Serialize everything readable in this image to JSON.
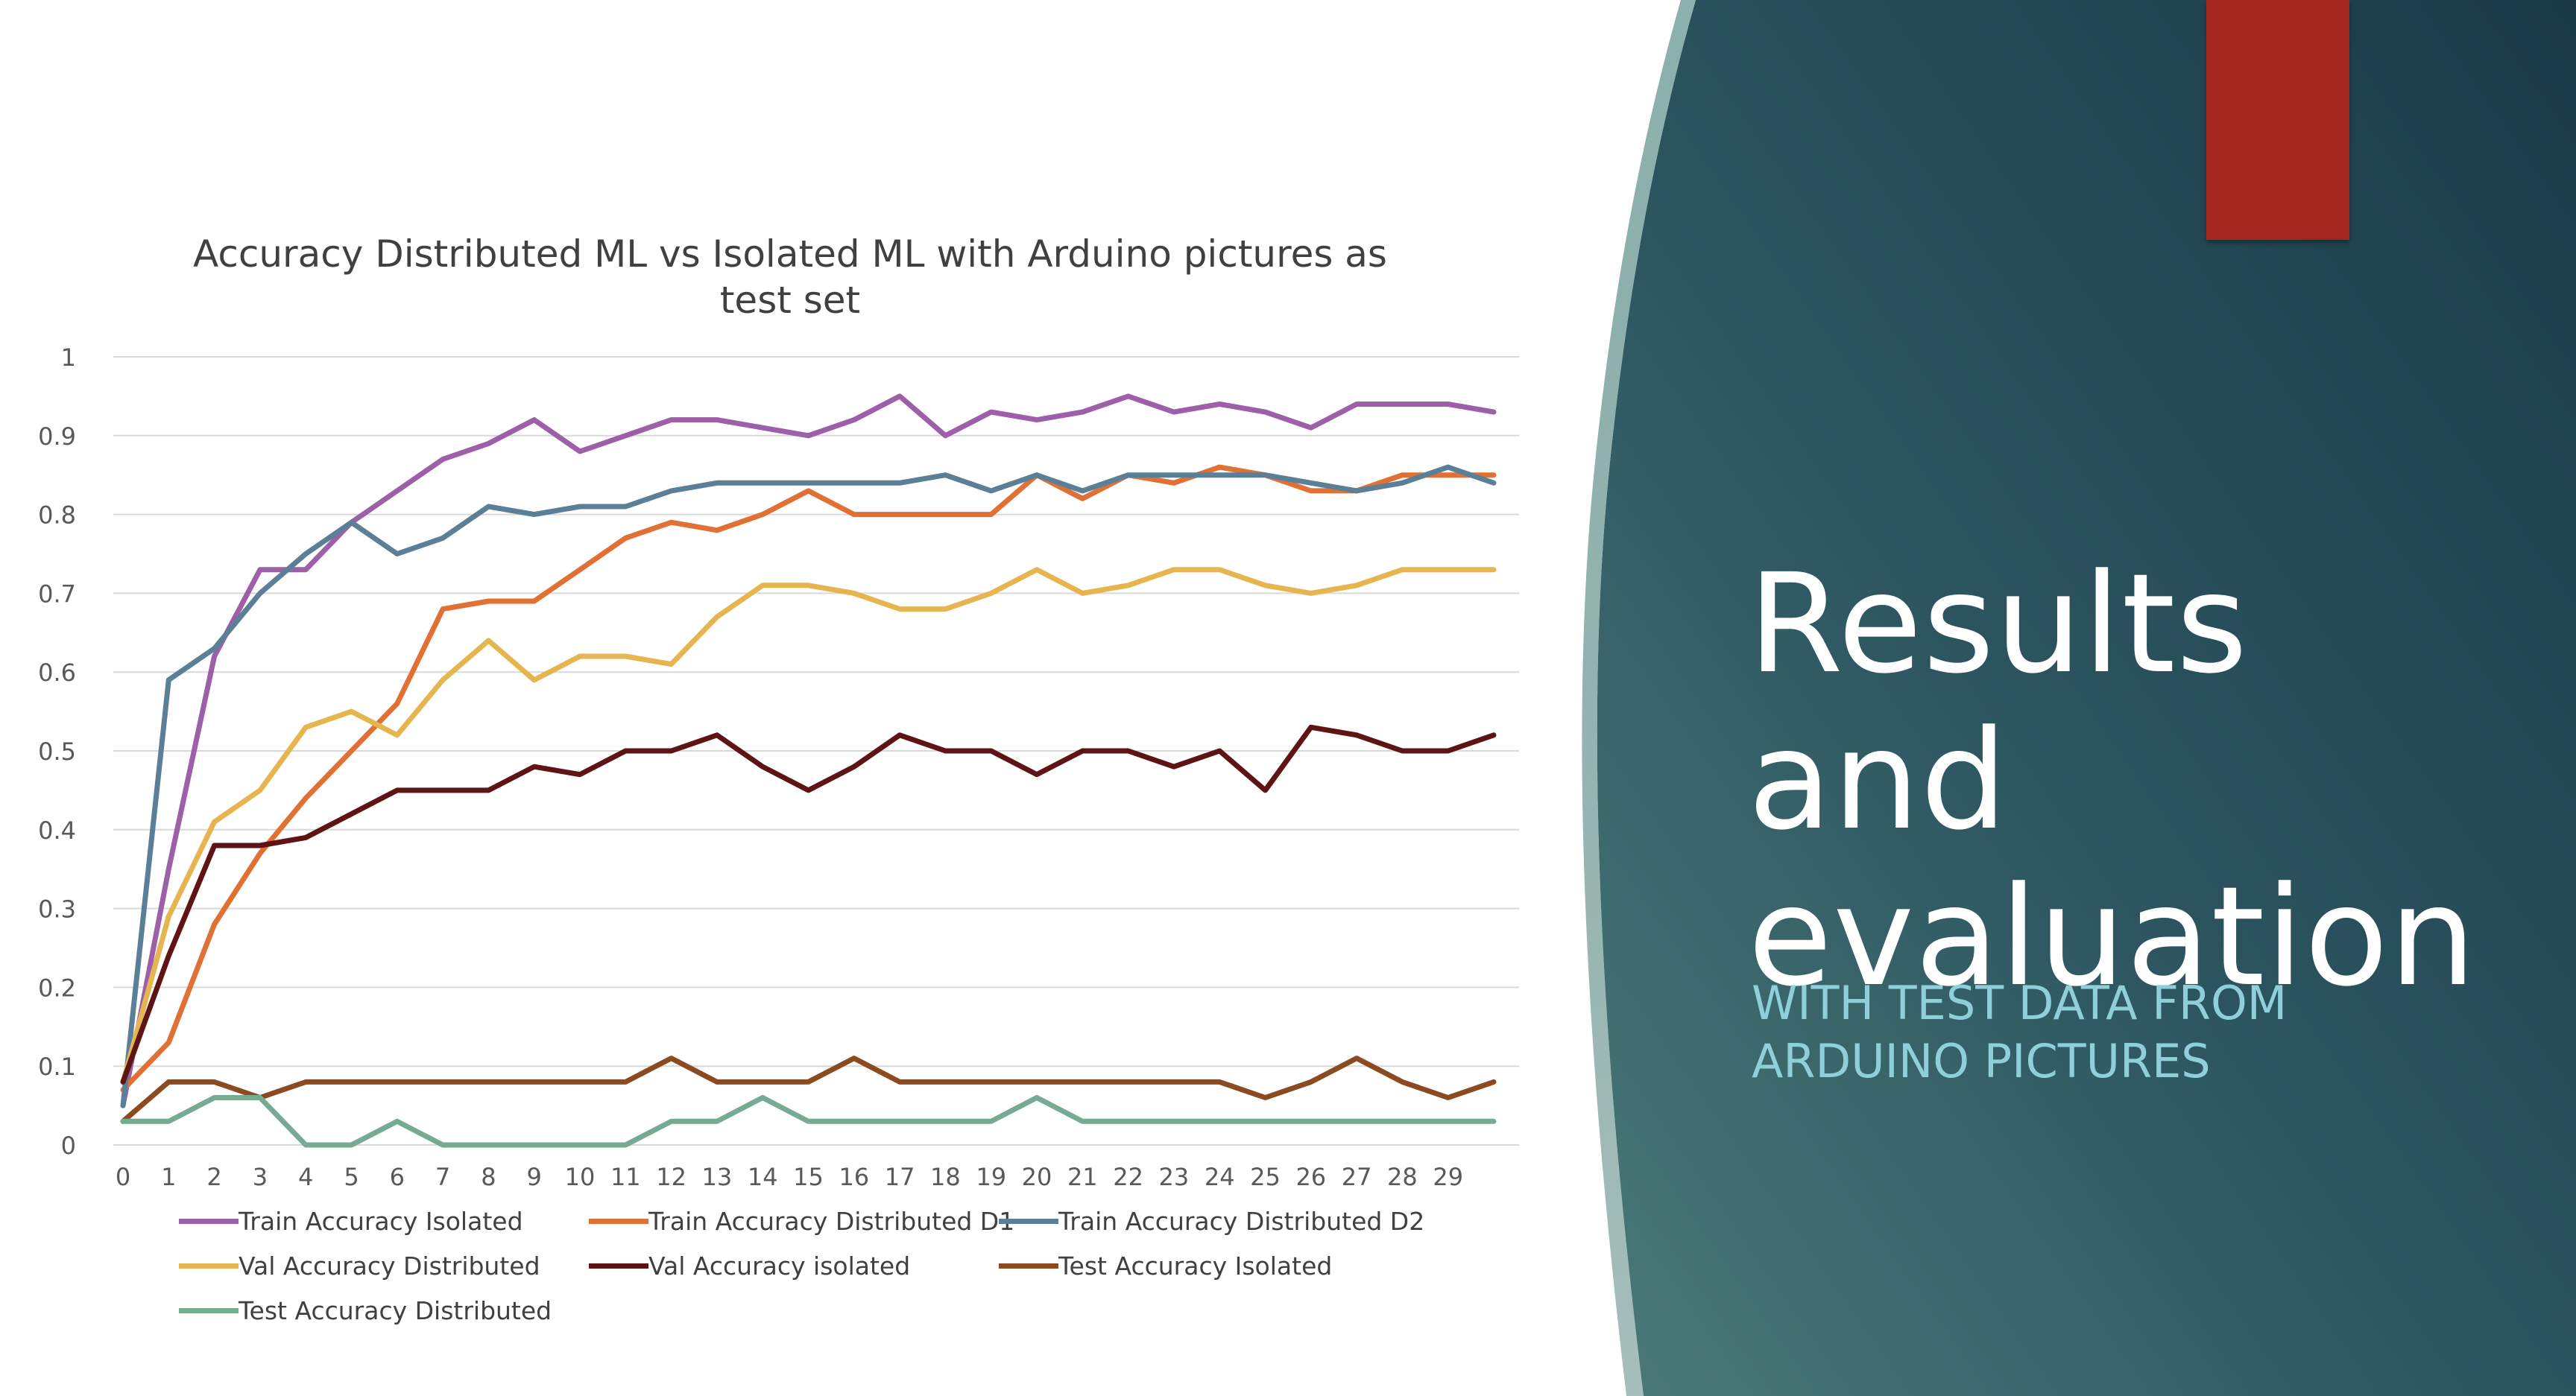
{
  "slide": {
    "title_lines": [
      "Results",
      "and",
      "evaluation"
    ],
    "subtitle_lines": [
      "WITH TEST DATA FROM",
      "ARDUINO PICTURES"
    ],
    "colors": {
      "panel_dark": "#1d3d48",
      "panel_light": "#3d6a6c",
      "accent_red": "#a3271f",
      "subtitle": "#8fcfd9"
    }
  },
  "chart_data": {
    "type": "line",
    "title_lines": [
      "Accuracy Distributed ML vs Isolated ML with Arduino pictures as",
      "test set"
    ],
    "xlabel": "",
    "ylabel": "",
    "x_ticks": [
      "0",
      "1",
      "2",
      "3",
      "4",
      "5",
      "6",
      "7",
      "8",
      "9",
      "10",
      "11",
      "12",
      "13",
      "14",
      "15",
      "16",
      "17",
      "18",
      "19",
      "20",
      "21",
      "22",
      "23",
      "24",
      "25",
      "26",
      "27",
      "28",
      "29"
    ],
    "y_ticks": [
      "0",
      "0.1",
      "0.2",
      "0.3",
      "0.4",
      "0.5",
      "0.6",
      "0.7",
      "0.8",
      "0.9",
      "1"
    ],
    "ylim": [
      0,
      1
    ],
    "xlim": [
      0,
      30
    ],
    "grid": true,
    "legend_position": "bottom",
    "series": [
      {
        "name": "Train Accuracy Isolated",
        "color": "#9c5fa8",
        "values": [
          0.05,
          0.35,
          0.62,
          0.73,
          0.73,
          0.79,
          0.83,
          0.87,
          0.89,
          0.92,
          0.88,
          0.9,
          0.92,
          0.92,
          0.91,
          0.9,
          0.92,
          0.95,
          0.9,
          0.93,
          0.92,
          0.93,
          0.95,
          0.93,
          0.94,
          0.93,
          0.91,
          0.94,
          0.94,
          0.94,
          0.93
        ]
      },
      {
        "name": "Train Accuracy Distributed D1",
        "color": "#e07034",
        "values": [
          0.07,
          0.13,
          0.28,
          0.37,
          0.44,
          0.5,
          0.56,
          0.68,
          0.69,
          0.69,
          0.73,
          0.77,
          0.79,
          0.78,
          0.8,
          0.83,
          0.8,
          0.8,
          0.8,
          0.8,
          0.85,
          0.82,
          0.85,
          0.84,
          0.86,
          0.85,
          0.83,
          0.83,
          0.85,
          0.85,
          0.85
        ]
      },
      {
        "name": "Train Accuracy Distributed D2",
        "color": "#5b7f96",
        "values": [
          0.05,
          0.59,
          0.63,
          0.7,
          0.75,
          0.79,
          0.75,
          0.77,
          0.81,
          0.8,
          0.81,
          0.81,
          0.83,
          0.84,
          0.84,
          0.84,
          0.84,
          0.84,
          0.85,
          0.83,
          0.85,
          0.83,
          0.85,
          0.85,
          0.85,
          0.85,
          0.84,
          0.83,
          0.84,
          0.86,
          0.84
        ]
      },
      {
        "name": "Val Accuracy Distributed",
        "color": "#e6b54f",
        "values": [
          0.08,
          0.29,
          0.41,
          0.45,
          0.53,
          0.55,
          0.52,
          0.59,
          0.64,
          0.59,
          0.62,
          0.62,
          0.61,
          0.67,
          0.71,
          0.71,
          0.7,
          0.68,
          0.68,
          0.7,
          0.73,
          0.7,
          0.71,
          0.73,
          0.73,
          0.71,
          0.7,
          0.71,
          0.73,
          0.73,
          0.73
        ]
      },
      {
        "name": "Val Accuracy isolated",
        "color": "#5e1414",
        "values": [
          0.08,
          0.24,
          0.38,
          0.38,
          0.39,
          0.42,
          0.45,
          0.45,
          0.45,
          0.48,
          0.47,
          0.5,
          0.5,
          0.52,
          0.48,
          0.45,
          0.48,
          0.52,
          0.5,
          0.5,
          0.47,
          0.5,
          0.5,
          0.48,
          0.5,
          0.45,
          0.53,
          0.52,
          0.5,
          0.5,
          0.52
        ]
      },
      {
        "name": "Test Accuracy Isolated",
        "color": "#8b4a20",
        "values": [
          0.03,
          0.08,
          0.08,
          0.06,
          0.08,
          0.08,
          0.08,
          0.08,
          0.08,
          0.08,
          0.08,
          0.08,
          0.11,
          0.08,
          0.08,
          0.08,
          0.11,
          0.08,
          0.08,
          0.08,
          0.08,
          0.08,
          0.08,
          0.08,
          0.08,
          0.06,
          0.08,
          0.11,
          0.08,
          0.06,
          0.08
        ]
      },
      {
        "name": "Test Accuracy Distributed",
        "color": "#75aa93",
        "values": [
          0.03,
          0.03,
          0.06,
          0.06,
          0.0,
          0.0,
          0.03,
          0.0,
          0.0,
          0.0,
          0.0,
          0.0,
          0.03,
          0.03,
          0.06,
          0.03,
          0.03,
          0.03,
          0.03,
          0.03,
          0.06,
          0.03,
          0.03,
          0.03,
          0.03,
          0.03,
          0.03,
          0.03,
          0.03,
          0.03,
          0.03
        ]
      }
    ]
  }
}
